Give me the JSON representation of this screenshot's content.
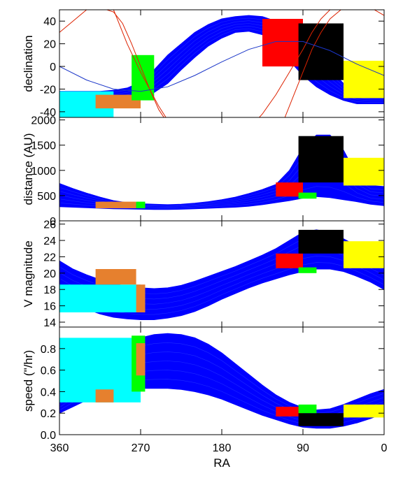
{
  "chart_data": {
    "type": "line",
    "shared_x": {
      "label": "RA",
      "lim": [
        360,
        0
      ],
      "ticks": [
        360,
        270,
        180,
        90,
        0
      ],
      "tick_labels": [
        "360",
        "270",
        "180",
        "90",
        "0"
      ]
    },
    "colors": {
      "blue": "#0000ff",
      "red": "#ff0000",
      "green": "#00ff00",
      "black": "#000000",
      "yellow": "#ffff00",
      "cyan": "#00ffff",
      "orange": "#e6802e",
      "track_red": "#dd2200",
      "track_blue": "#1a35c8"
    },
    "panels": [
      {
        "ylabel": "declination",
        "ylim": [
          -45,
          50
        ],
        "yticks": [
          -40,
          -20,
          0,
          20,
          40
        ],
        "ytick_labels": [
          "-40",
          "-20",
          "0",
          "20",
          "40"
        ],
        "band": {
          "x": [
            360,
            345,
            330,
            315,
            300,
            285,
            270,
            255,
            240,
            225,
            210,
            195,
            180,
            165,
            150,
            135,
            120,
            105,
            90,
            75,
            60,
            45,
            30,
            15,
            0
          ],
          "lower": [
            -33,
            -33,
            -33,
            -33,
            -32,
            -31,
            -29,
            -23,
            -15,
            -3,
            8,
            18,
            25,
            30,
            31,
            28,
            18,
            5,
            -8,
            -18,
            -25,
            -30,
            -33,
            -33,
            -33
          ],
          "upper": [
            -22,
            -22,
            -22,
            -22,
            -21,
            -19,
            -14,
            -3,
            10,
            20,
            30,
            37,
            42,
            44,
            45,
            44,
            40,
            33,
            22,
            10,
            -3,
            -15,
            -22,
            -25,
            -25
          ]
        },
        "regions": [
          {
            "color": "cyan",
            "x": [
              360,
              300
            ],
            "y": [
              -45,
              -22
            ]
          },
          {
            "color": "orange",
            "x": [
              320,
              270
            ],
            "y": [
              -37,
              -25
            ]
          },
          {
            "color": "green",
            "x": [
              280,
              255
            ],
            "y": [
              -30,
              10
            ]
          },
          {
            "color": "red",
            "x": [
              135,
              90
            ],
            "y": [
              0,
              42
            ]
          },
          {
            "color": "black",
            "x": [
              95,
              45
            ],
            "y": [
              -12,
              38
            ]
          },
          {
            "color": "yellow",
            "x": [
              45,
              0
            ],
            "y": [
              -28,
              5
            ]
          }
        ],
        "tracks": [
          {
            "color": "track_red",
            "x": [
              300,
              295,
              285,
              270,
              250,
              230,
              210,
              190
            ],
            "y": [
              50,
              40,
              20,
              -5,
              -35,
              -60,
              -80,
              -90
            ]
          },
          {
            "color": "track_red",
            "x": [
              360,
              345,
              330,
              315,
              300,
              290,
              280,
              270,
              260,
              250,
              240
            ],
            "y": [
              30,
              40,
              50,
              52,
              48,
              38,
              20,
              0,
              -20,
              -38,
              -50
            ]
          },
          {
            "color": "track_red",
            "x": [
              150,
              135,
              120,
              105,
              90,
              80,
              70,
              60,
              45
            ],
            "y": [
              -55,
              -42,
              -25,
              -5,
              15,
              30,
              42,
              50,
              55
            ]
          },
          {
            "color": "track_red",
            "x": [
              120,
              110,
              100,
              90,
              80,
              70,
              60,
              45,
              30,
              15,
              0
            ],
            "y": [
              -60,
              -45,
              -25,
              -5,
              15,
              30,
              42,
              52,
              55,
              52,
              45
            ]
          },
          {
            "color": "track_blue",
            "x": [
              360,
              330,
              300,
              270,
              240,
              210,
              180,
              150,
              120,
              90,
              60,
              30,
              0
            ],
            "y": [
              0,
              -12,
              -20,
              -22,
              -18,
              -8,
              4,
              15,
              22,
              22,
              14,
              2,
              -8
            ]
          }
        ]
      },
      {
        "ylabel": "distance (AU)",
        "ylim": [
          0,
          2050
        ],
        "yticks": [
          0,
          500,
          1000,
          1500,
          2000
        ],
        "ytick_labels": [
          "0",
          "500",
          "1000",
          "1500",
          "2000"
        ],
        "band": {
          "x": [
            360,
            345,
            330,
            315,
            300,
            285,
            270,
            255,
            240,
            225,
            210,
            195,
            180,
            165,
            150,
            135,
            120,
            105,
            90,
            75,
            60,
            45,
            30,
            15,
            0
          ],
          "lower": [
            280,
            270,
            260,
            250,
            240,
            235,
            230,
            225,
            225,
            230,
            240,
            250,
            260,
            270,
            290,
            320,
            360,
            400,
            450,
            480,
            460,
            420,
            380,
            330,
            300
          ],
          "upper": [
            740,
            640,
            550,
            470,
            400,
            360,
            340,
            330,
            320,
            330,
            350,
            380,
            420,
            470,
            540,
            620,
            720,
            1000,
            1450,
            1700,
            1700,
            1400,
            900,
            700,
            680
          ]
        },
        "regions": [
          {
            "color": "orange",
            "x": [
              320,
              275
            ],
            "y": [
              250,
              380
            ]
          },
          {
            "color": "green",
            "x": [
              275,
              265
            ],
            "y": [
              250,
              380
            ]
          },
          {
            "color": "red",
            "x": [
              120,
              90
            ],
            "y": [
              480,
              760
            ]
          },
          {
            "color": "black",
            "x": [
              95,
              45
            ],
            "y": [
              760,
              1680
            ]
          },
          {
            "color": "yellow",
            "x": [
              45,
              0
            ],
            "y": [
              700,
              1250
            ]
          },
          {
            "color": "green",
            "x": [
              95,
              75
            ],
            "y": [
              440,
              560
            ]
          }
        ],
        "tracks": []
      },
      {
        "ylabel": "V magnitude",
        "ylim": [
          13.4,
          26.4
        ],
        "yticks": [
          14,
          16,
          18,
          20,
          22,
          24,
          26
        ],
        "ytick_labels": [
          "14",
          "16",
          "18",
          "20",
          "22",
          "24",
          "26"
        ],
        "band": {
          "x": [
            360,
            345,
            330,
            315,
            300,
            285,
            270,
            255,
            240,
            225,
            210,
            195,
            180,
            165,
            150,
            135,
            120,
            105,
            90,
            75,
            60,
            45,
            30,
            15,
            0
          ],
          "lower": [
            17.2,
            16.3,
            15.6,
            15.0,
            14.6,
            14.4,
            14.3,
            14.3,
            14.5,
            14.8,
            15.3,
            16.0,
            16.8,
            17.5,
            18.2,
            18.8,
            19.3,
            19.8,
            20.2,
            20.5,
            20.5,
            20.2,
            19.6,
            18.9,
            18.0
          ],
          "upper": [
            21.5,
            20.5,
            19.8,
            19.2,
            18.7,
            18.4,
            18.2,
            18.1,
            18.2,
            18.5,
            19.0,
            19.6,
            20.2,
            20.8,
            21.5,
            22.2,
            23.0,
            24.0,
            25.0,
            25.3,
            25.0,
            24.2,
            23.3,
            22.3,
            21.5
          ]
        },
        "regions": [
          {
            "color": "cyan",
            "x": [
              360,
              270
            ],
            "y": [
              15.2,
              18.6
            ]
          },
          {
            "color": "orange",
            "x": [
              320,
              275
            ],
            "y": [
              18.6,
              20.5
            ]
          },
          {
            "color": "orange",
            "x": [
              275,
              265
            ],
            "y": [
              15.2,
              18.6
            ]
          },
          {
            "color": "red",
            "x": [
              120,
              90
            ],
            "y": [
              20.6,
              22.4
            ]
          },
          {
            "color": "black",
            "x": [
              95,
              45
            ],
            "y": [
              22.4,
              25.3
            ]
          },
          {
            "color": "yellow",
            "x": [
              45,
              0
            ],
            "y": [
              20.6,
              23.9
            ]
          },
          {
            "color": "green",
            "x": [
              95,
              75
            ],
            "y": [
              20.0,
              20.7
            ]
          }
        ],
        "tracks": []
      },
      {
        "ylabel": "speed (\"/hr)",
        "ylim": [
          0.0,
          1.0
        ],
        "yticks": [
          0.0,
          0.2,
          0.4,
          0.6,
          0.8
        ],
        "ytick_labels": [
          "0.0",
          "0.2",
          "0.4",
          "0.6",
          "0.8"
        ],
        "band": {
          "x": [
            360,
            345,
            330,
            315,
            300,
            285,
            270,
            255,
            240,
            225,
            210,
            195,
            180,
            165,
            150,
            135,
            120,
            105,
            90,
            75,
            60,
            45,
            30,
            15,
            0
          ],
          "lower": [
            0.2,
            0.26,
            0.32,
            0.37,
            0.4,
            0.42,
            0.43,
            0.43,
            0.43,
            0.42,
            0.4,
            0.37,
            0.33,
            0.28,
            0.23,
            0.18,
            0.14,
            0.1,
            0.07,
            0.06,
            0.06,
            0.08,
            0.11,
            0.15,
            0.2
          ],
          "upper": [
            0.36,
            0.5,
            0.62,
            0.72,
            0.8,
            0.86,
            0.9,
            0.93,
            0.94,
            0.93,
            0.9,
            0.84,
            0.76,
            0.66,
            0.56,
            0.46,
            0.37,
            0.3,
            0.25,
            0.23,
            0.24,
            0.28,
            0.33,
            0.38,
            0.42
          ]
        },
        "regions": [
          {
            "color": "cyan",
            "x": [
              360,
              270
            ],
            "y": [
              0.3,
              0.9
            ]
          },
          {
            "color": "orange",
            "x": [
              320,
              300
            ],
            "y": [
              0.3,
              0.42
            ]
          },
          {
            "color": "green",
            "x": [
              280,
              265
            ],
            "y": [
              0.4,
              0.92
            ]
          },
          {
            "color": "orange",
            "x": [
              275,
              265
            ],
            "y": [
              0.55,
              0.85
            ]
          },
          {
            "color": "red",
            "x": [
              120,
              90
            ],
            "y": [
              0.17,
              0.26
            ]
          },
          {
            "color": "black",
            "x": [
              95,
              45
            ],
            "y": [
              0.08,
              0.2
            ]
          },
          {
            "color": "yellow",
            "x": [
              45,
              0
            ],
            "y": [
              0.16,
              0.28
            ]
          },
          {
            "color": "green",
            "x": [
              95,
              75
            ],
            "y": [
              0.2,
              0.28
            ]
          }
        ],
        "tracks": []
      }
    ]
  }
}
